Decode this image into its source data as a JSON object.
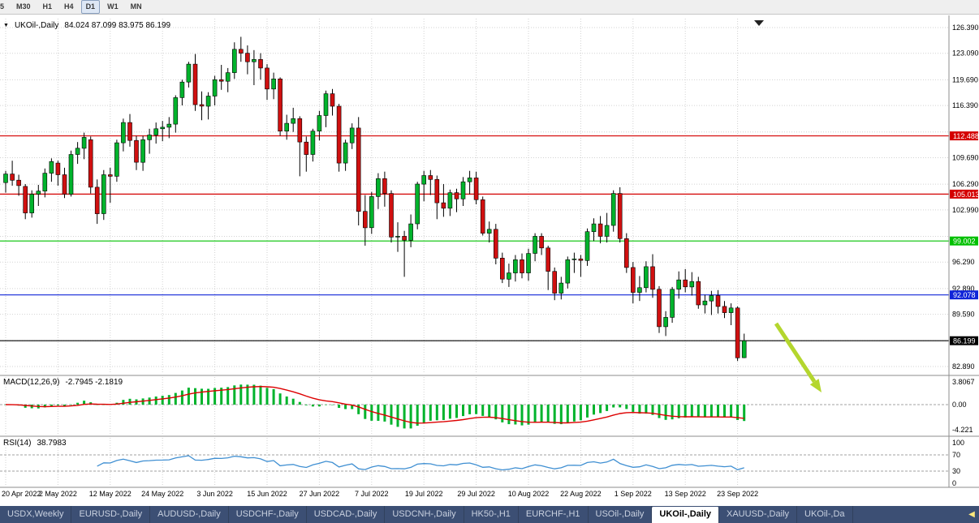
{
  "toolbar": {
    "periods": [
      {
        "label": "5",
        "active": false
      },
      {
        "label": "M30",
        "active": false
      },
      {
        "label": "H1",
        "active": false
      },
      {
        "label": "H4",
        "active": false
      },
      {
        "label": "D1",
        "active": true
      },
      {
        "label": "W1",
        "active": false
      },
      {
        "label": "MN",
        "active": false
      }
    ]
  },
  "header": {
    "collapse_icon": "▼",
    "symbol": "UKOil-,Daily",
    "ohlc": "84.024 87.099 83.975 86.199"
  },
  "macd_header": {
    "label": "MACD(12,26,9)",
    "values": "-2.7945 -2.1819"
  },
  "rsi_header": {
    "label": "RSI(14)",
    "value": "38.7983"
  },
  "chart_data": {
    "type": "candlestick",
    "symbol": "UKOil-,Daily",
    "timeframe": "Daily",
    "last_ohlc": {
      "open": 84.024,
      "high": 87.099,
      "low": 83.975,
      "close": 86.199
    },
    "x_ticks": [
      "20 Apr 2022",
      "2 May 2022",
      "12 May 2022",
      "24 May 2022",
      "3 Jun 2022",
      "15 Jun 2022",
      "27 Jun 2022",
      "7 Jul 2022",
      "19 Jul 2022",
      "29 Jul 2022",
      "10 Aug 2022",
      "22 Aug 2022",
      "1 Sep 2022",
      "13 Sep 2022",
      "23 Sep 2022"
    ],
    "candles_per_tick": 8,
    "price_axis": {
      "labels": [
        {
          "text": "126.390",
          "value": 126.39
        },
        {
          "text": "123.090",
          "value": 123.09
        },
        {
          "text": "119.690",
          "value": 119.69
        },
        {
          "text": "116.390",
          "value": 116.39
        },
        {
          "text": "109.690",
          "value": 109.69
        },
        {
          "text": "106.290",
          "value": 106.29
        },
        {
          "text": "102.990",
          "value": 102.99
        },
        {
          "text": "96.290",
          "value": 96.29
        },
        {
          "text": "92.890",
          "value": 92.89
        },
        {
          "text": "89.590",
          "value": 89.59
        },
        {
          "text": "82.890",
          "value": 82.89
        }
      ],
      "grid_values": [
        126.39,
        123.09,
        119.69,
        116.39,
        112.99,
        109.69,
        106.29,
        102.99,
        99.59,
        96.29,
        92.89,
        89.59,
        86.19,
        82.89
      ]
    },
    "hlines": [
      {
        "text": "112.488",
        "value": 112.488,
        "color": "#d40000"
      },
      {
        "text": "105.013",
        "value": 105.013,
        "color": "#d40000"
      },
      {
        "text": "99.002",
        "value": 99.002,
        "color": "#00c000"
      },
      {
        "text": "92.078",
        "value": 92.078,
        "color": "#1024d8"
      },
      {
        "text": "86.199",
        "value": 86.199,
        "color": "#000000"
      }
    ],
    "colors": {
      "up": "#00b32c",
      "down": "#d01010",
      "wick": "#000000",
      "macd_hist": "#00b32c",
      "macd_signal": "#dd0000",
      "rsi_line": "#3f8fd2",
      "grid": "#d2d2d2",
      "level_dash": "#a0a0a0",
      "annotation": "#b4d62e"
    },
    "candles": [
      [
        106.5,
        108.0,
        105.2,
        107.6
      ],
      [
        107.6,
        109.3,
        106.1,
        106.8
      ],
      [
        106.8,
        107.5,
        104.8,
        106.1
      ],
      [
        106.0,
        106.3,
        101.8,
        102.6
      ],
      [
        102.6,
        105.5,
        102.0,
        105.0
      ],
      [
        105.0,
        106.2,
        103.5,
        105.4
      ],
      [
        105.4,
        108.3,
        104.6,
        107.7
      ],
      [
        107.7,
        109.6,
        106.6,
        109.2
      ],
      [
        109.0,
        109.3,
        106.1,
        107.5
      ],
      [
        107.5,
        108.4,
        104.5,
        105.0
      ],
      [
        105.0,
        110.6,
        104.7,
        110.1
      ],
      [
        110.1,
        111.7,
        108.9,
        110.9
      ],
      [
        110.9,
        112.9,
        109.5,
        112.3
      ],
      [
        112.0,
        112.4,
        105.1,
        105.9
      ],
      [
        105.9,
        106.9,
        101.2,
        102.5
      ],
      [
        102.5,
        108.1,
        101.7,
        107.5
      ],
      [
        107.5,
        108.4,
        103.9,
        107.3
      ],
      [
        107.3,
        112.0,
        106.6,
        111.6
      ],
      [
        111.6,
        114.7,
        110.5,
        114.2
      ],
      [
        114.2,
        115.3,
        111.1,
        111.9
      ],
      [
        111.9,
        112.5,
        108.1,
        109.1
      ],
      [
        109.1,
        112.5,
        108.0,
        112.0
      ],
      [
        112.0,
        113.4,
        110.2,
        112.6
      ],
      [
        112.6,
        114.2,
        111.5,
        113.4
      ],
      [
        113.4,
        114.4,
        111.8,
        113.6
      ],
      [
        113.6,
        114.9,
        112.2,
        114.0
      ],
      [
        114.0,
        117.7,
        112.9,
        117.4
      ],
      [
        117.4,
        119.7,
        116.4,
        119.4
      ],
      [
        119.4,
        122.0,
        118.7,
        121.7
      ],
      [
        121.7,
        123.0,
        115.7,
        116.5
      ],
      [
        116.5,
        118.2,
        114.5,
        116.3
      ],
      [
        116.3,
        118.1,
        114.6,
        117.6
      ],
      [
        117.6,
        120.2,
        116.4,
        119.7
      ],
      [
        119.7,
        121.6,
        118.4,
        119.5
      ],
      [
        119.5,
        121.2,
        118.1,
        120.6
      ],
      [
        120.6,
        124.5,
        119.8,
        123.6
      ],
      [
        123.6,
        125.2,
        122.0,
        123.1
      ],
      [
        123.1,
        124.1,
        120.4,
        122.0
      ],
      [
        122.0,
        123.5,
        119.0,
        122.3
      ],
      [
        122.3,
        123.1,
        119.7,
        121.2
      ],
      [
        121.2,
        121.7,
        117.1,
        118.5
      ],
      [
        118.5,
        120.6,
        117.2,
        119.8
      ],
      [
        119.8,
        120.0,
        112.5,
        113.1
      ],
      [
        113.1,
        115.2,
        112.0,
        114.1
      ],
      [
        114.1,
        116.1,
        113.0,
        114.7
      ],
      [
        114.7,
        115.0,
        107.3,
        111.7
      ],
      [
        111.7,
        112.4,
        107.9,
        110.1
      ],
      [
        110.1,
        113.4,
        109.2,
        113.1
      ],
      [
        113.1,
        115.7,
        111.9,
        115.1
      ],
      [
        115.1,
        118.3,
        113.6,
        117.9
      ],
      [
        117.9,
        118.5,
        115.1,
        116.3
      ],
      [
        116.3,
        116.6,
        107.9,
        109.0
      ],
      [
        109.0,
        112.0,
        108.0,
        111.6
      ],
      [
        111.6,
        114.1,
        110.8,
        113.5
      ],
      [
        113.5,
        114.9,
        101.0,
        102.8
      ],
      [
        102.8,
        104.9,
        98.4,
        100.7
      ],
      [
        100.7,
        105.3,
        99.9,
        104.7
      ],
      [
        104.7,
        107.7,
        103.1,
        107.0
      ],
      [
        107.0,
        107.9,
        103.4,
        105.1
      ],
      [
        105.1,
        105.5,
        98.8,
        99.5
      ],
      [
        99.5,
        101.4,
        97.6,
        99.6
      ],
      [
        99.6,
        100.3,
        94.4,
        99.1
      ],
      [
        99.1,
        102.4,
        98.2,
        101.2
      ],
      [
        101.2,
        106.6,
        100.5,
        106.3
      ],
      [
        106.3,
        108.0,
        104.1,
        107.4
      ],
      [
        107.4,
        108.1,
        104.9,
        106.9
      ],
      [
        106.9,
        107.4,
        101.8,
        103.9
      ],
      [
        103.9,
        106.3,
        102.1,
        103.2
      ],
      [
        103.2,
        105.6,
        102.2,
        105.2
      ],
      [
        105.2,
        105.7,
        102.7,
        104.4
      ],
      [
        104.4,
        107.2,
        103.5,
        106.6
      ],
      [
        106.6,
        108.0,
        105.0,
        107.1
      ],
      [
        107.1,
        107.9,
        103.7,
        104.3
      ],
      [
        104.3,
        104.7,
        99.7,
        100.0
      ],
      [
        100.0,
        101.5,
        98.8,
        100.5
      ],
      [
        100.5,
        101.2,
        96.0,
        96.8
      ],
      [
        96.8,
        97.5,
        93.6,
        94.1
      ],
      [
        94.1,
        96.1,
        93.1,
        94.9
      ],
      [
        94.9,
        97.2,
        93.8,
        96.6
      ],
      [
        96.6,
        97.4,
        94.2,
        94.9
      ],
      [
        94.9,
        98.0,
        93.9,
        97.4
      ],
      [
        97.4,
        100.0,
        96.4,
        99.6
      ],
      [
        99.6,
        100.0,
        97.2,
        98.1
      ],
      [
        98.1,
        98.4,
        92.7,
        95.1
      ],
      [
        95.1,
        95.6,
        91.4,
        92.3
      ],
      [
        92.3,
        94.4,
        91.5,
        93.6
      ],
      [
        93.6,
        97.0,
        92.9,
        96.6
      ],
      [
        96.6,
        97.5,
        94.9,
        96.7
      ],
      [
        96.7,
        97.2,
        94.4,
        96.5
      ],
      [
        96.5,
        100.6,
        95.8,
        100.2
      ],
      [
        100.2,
        101.9,
        99.0,
        101.2
      ],
      [
        101.2,
        102.2,
        98.7,
        99.6
      ],
      [
        99.6,
        102.6,
        98.8,
        101.0
      ],
      [
        101.0,
        105.5,
        100.2,
        105.1
      ],
      [
        105.1,
        105.9,
        98.8,
        99.3
      ],
      [
        99.3,
        100.0,
        94.9,
        95.6
      ],
      [
        95.6,
        96.3,
        91.0,
        92.4
      ],
      [
        92.4,
        94.5,
        91.3,
        93.0
      ],
      [
        93.0,
        96.4,
        92.4,
        95.7
      ],
      [
        95.7,
        97.3,
        91.7,
        92.8
      ],
      [
        92.8,
        93.2,
        87.2,
        88.0
      ],
      [
        88.0,
        90.0,
        86.8,
        89.2
      ],
      [
        89.2,
        93.1,
        88.5,
        92.8
      ],
      [
        92.8,
        95.1,
        91.6,
        94.0
      ],
      [
        94.0,
        95.4,
        92.4,
        93.1
      ],
      [
        93.1,
        95.0,
        92.0,
        93.8
      ],
      [
        93.8,
        94.4,
        90.3,
        90.8
      ],
      [
        90.8,
        92.1,
        89.7,
        91.3
      ],
      [
        91.3,
        92.6,
        89.5,
        92.0
      ],
      [
        92.0,
        92.7,
        89.7,
        90.6
      ],
      [
        90.6,
        91.3,
        89.1,
        89.8
      ],
      [
        89.8,
        91.0,
        88.2,
        90.4
      ],
      [
        90.4,
        90.6,
        83.6,
        84.0
      ],
      [
        84.024,
        87.099,
        83.975,
        86.199
      ]
    ],
    "macd": {
      "params": [
        12,
        26,
        9
      ],
      "current_values": [
        -2.7945,
        -2.1819
      ],
      "axis_labels": [
        {
          "text": "3.8067",
          "value": 3.8067
        },
        {
          "text": "0.00",
          "value": 0
        },
        {
          "text": "-4.221",
          "value": -4.221
        }
      ],
      "range": [
        -4.221,
        3.8067
      ]
    },
    "rsi": {
      "period": 14,
      "current_value": 38.7983,
      "axis_labels": [
        {
          "text": "100",
          "value": 100
        },
        {
          "text": "70",
          "value": 70
        },
        {
          "text": "30",
          "value": 30
        },
        {
          "text": "0",
          "value": 0
        }
      ],
      "levels": [
        70,
        30
      ],
      "range": [
        0,
        100
      ]
    },
    "annotation_arrow": {
      "from": [
        956,
        380
      ],
      "to": [
        1012,
        465
      ]
    }
  },
  "tabs": {
    "items": [
      {
        "label": "USDX,Weekly",
        "active": false
      },
      {
        "label": "EURUSD-,Daily",
        "active": false
      },
      {
        "label": "AUDUSD-,Daily",
        "active": false
      },
      {
        "label": "USDCHF-,Daily",
        "active": false
      },
      {
        "label": "USDCAD-,Daily",
        "active": false
      },
      {
        "label": "USDCNH-,Daily",
        "active": false
      },
      {
        "label": "HK50-,H1",
        "active": false
      },
      {
        "label": "EURCHF-,H1",
        "active": false
      },
      {
        "label": "USOil-,Daily",
        "active": false
      },
      {
        "label": "UKOil-,Daily",
        "active": true
      },
      {
        "label": "XAUUSD-,Daily",
        "active": false
      },
      {
        "label": "UKOil-,Da",
        "active": false
      }
    ],
    "scroll_icon": "◀"
  }
}
